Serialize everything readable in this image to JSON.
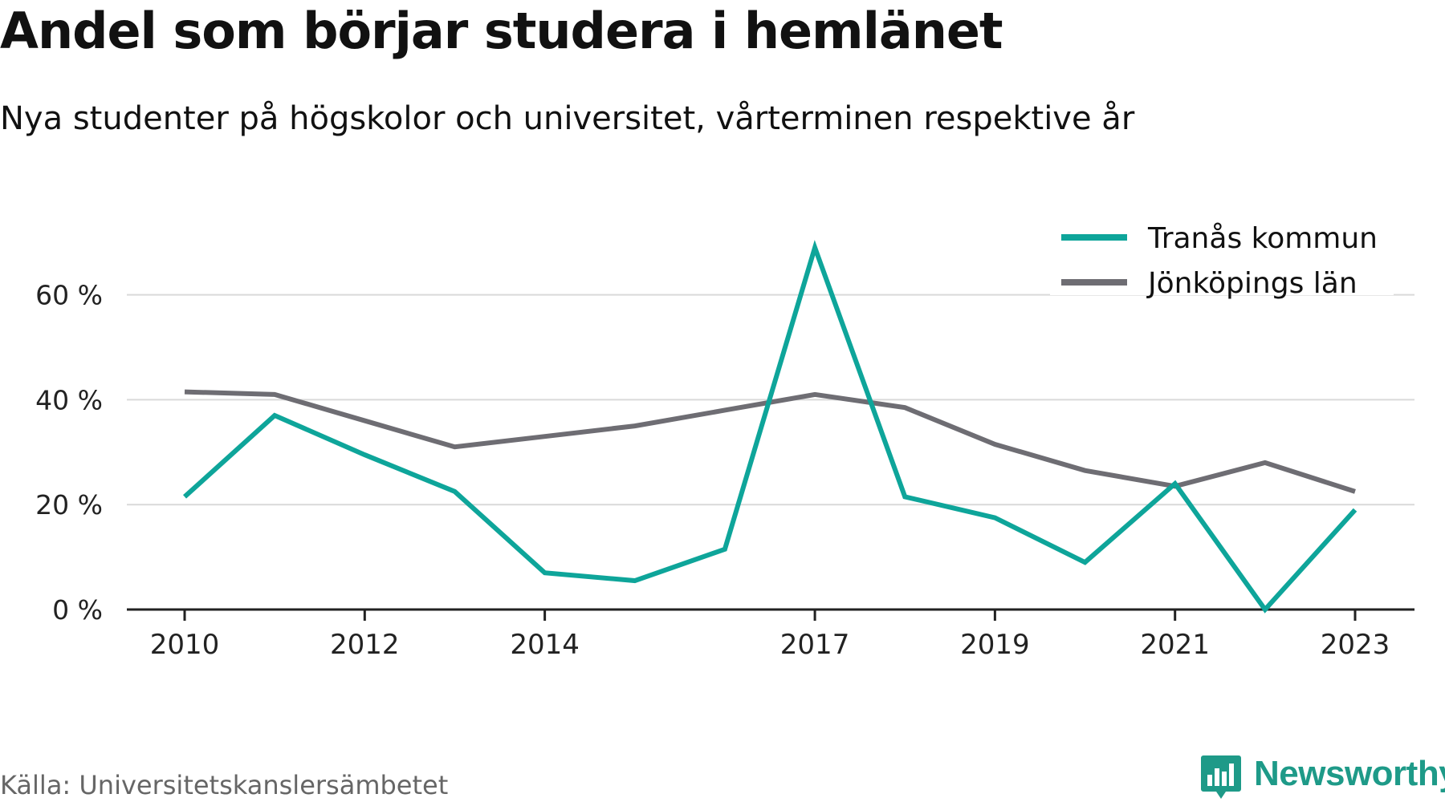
{
  "header": {
    "title": "Andel som börjar studera i hemlänet",
    "subtitle": "Nya studenter på högskolor och universitet, vårterminen respektive år"
  },
  "footer": {
    "source": "Källa: Universitetskanslersämbetet",
    "brand": "Newsworthy",
    "brand_icon": "bar-chart-speech-bubble-icon"
  },
  "colors": {
    "accent": "#0ea59a",
    "secondary": "#6e6d73",
    "grid": "#d9d9d9",
    "axis": "#222222",
    "brand": "#1e9a88"
  },
  "chart_data": {
    "type": "line",
    "x": [
      2010,
      2011,
      2012,
      2013,
      2014,
      2015,
      2016,
      2017,
      2018,
      2019,
      2020,
      2021,
      2022,
      2023
    ],
    "x_tick_labels": [
      "2010",
      "2012",
      "2014",
      "2017",
      "2019",
      "2021",
      "2023"
    ],
    "y_tick_values": [
      0,
      20,
      40,
      60
    ],
    "y_tick_labels": [
      "0 %",
      "20 %",
      "40 %",
      "60 %"
    ],
    "ylim": [
      0,
      70
    ],
    "grid": true,
    "legend_position": "top-right",
    "series": [
      {
        "name": "Tranås kommun",
        "color": "#0ea59a",
        "values": [
          21.5,
          37,
          29.5,
          22.5,
          7,
          5.5,
          11.5,
          69,
          21.5,
          17.5,
          9,
          24,
          0,
          19
        ]
      },
      {
        "name": "Jönköpings län",
        "color": "#6e6d73",
        "values": [
          41.5,
          41,
          36,
          31,
          33,
          35,
          38,
          41,
          38.5,
          31.5,
          26.5,
          23.5,
          28,
          22.5
        ]
      }
    ]
  }
}
